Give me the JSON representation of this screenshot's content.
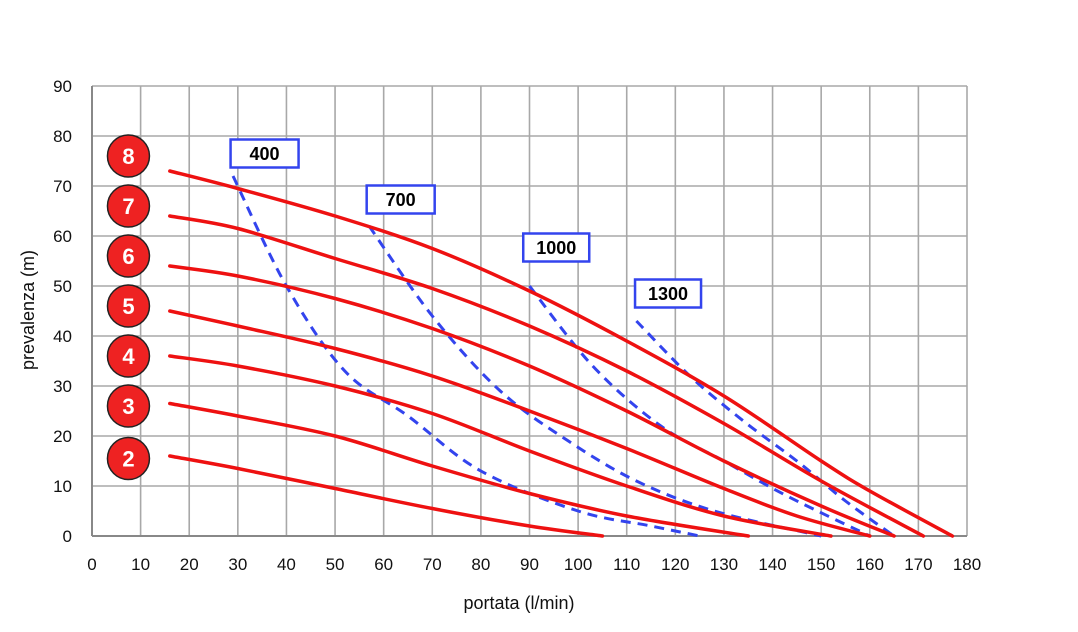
{
  "chart_data": {
    "type": "line",
    "title": "",
    "xlabel": "portata (l/min)",
    "ylabel": "prevalenza (m)",
    "xlim": [
      0,
      180
    ],
    "ylim": [
      0,
      90
    ],
    "x_ticks": [
      0,
      10,
      20,
      30,
      40,
      50,
      60,
      70,
      80,
      90,
      100,
      110,
      120,
      130,
      140,
      150,
      160,
      170,
      180
    ],
    "y_ticks": [
      0,
      10,
      20,
      30,
      40,
      50,
      60,
      70,
      80,
      90
    ],
    "grid": true,
    "curve_color": "#ee1111",
    "iso_color": "#3344ee",
    "series": [
      {
        "name": "2",
        "x": [
          16,
          30,
          50,
          70,
          90,
          105
        ],
        "y": [
          16,
          13.5,
          9.5,
          5.5,
          2,
          0
        ]
      },
      {
        "name": "3",
        "x": [
          16,
          30,
          50,
          70,
          90,
          110,
          135
        ],
        "y": [
          26.5,
          24,
          20,
          14,
          8.5,
          4,
          0
        ]
      },
      {
        "name": "4",
        "x": [
          16,
          30,
          50,
          70,
          90,
          110,
          130,
          152
        ],
        "y": [
          36,
          34,
          30,
          24.5,
          17,
          10,
          4,
          0
        ]
      },
      {
        "name": "5",
        "x": [
          16,
          30,
          50,
          70,
          90,
          110,
          130,
          145,
          160
        ],
        "y": [
          45,
          42,
          37.5,
          32,
          25,
          17.5,
          9.5,
          4,
          0
        ]
      },
      {
        "name": "6",
        "x": [
          16,
          30,
          50,
          70,
          90,
          110,
          130,
          150,
          165
        ],
        "y": [
          54,
          52,
          47.5,
          41.5,
          34,
          25,
          15,
          6,
          0
        ]
      },
      {
        "name": "7",
        "x": [
          16,
          30,
          50,
          70,
          90,
          110,
          130,
          150,
          171
        ],
        "y": [
          64,
          61.5,
          55.5,
          49.5,
          42,
          33,
          22.5,
          11,
          0
        ]
      },
      {
        "name": "8",
        "x": [
          16,
          30,
          50,
          70,
          90,
          110,
          130,
          150,
          160,
          177
        ],
        "y": [
          73,
          69.5,
          64,
          57.5,
          49,
          39,
          28,
          15,
          9,
          0
        ]
      }
    ],
    "iso_lines": [
      {
        "label": "400",
        "x": [
          29,
          40,
          52,
          65,
          80,
          100,
          115,
          125
        ],
        "y": [
          72,
          50,
          33,
          24,
          13,
          5,
          2,
          0
        ]
      },
      {
        "label": "700",
        "x": [
          57,
          70,
          84,
          98,
          112,
          128,
          150
        ],
        "y": [
          62,
          44,
          29,
          19,
          11,
          5,
          0
        ]
      },
      {
        "label": "1000",
        "x": [
          90,
          103,
          117,
          130,
          143,
          160
        ],
        "y": [
          50,
          34,
          22,
          15,
          8,
          0
        ]
      },
      {
        "label": "1300",
        "x": [
          112,
          123,
          134,
          145,
          155,
          165
        ],
        "y": [
          43,
          32,
          23,
          15,
          7,
          0
        ]
      }
    ],
    "iso_label_positions": [
      {
        "label": "400",
        "x": 35.5,
        "y": 76.5
      },
      {
        "label": "700",
        "x": 63.5,
        "y": 67.3
      },
      {
        "label": "1000",
        "x": 95.5,
        "y": 57.7
      },
      {
        "label": "1300",
        "x": 118.5,
        "y": 48.5
      }
    ],
    "badges": [
      {
        "label": "8",
        "y": 76
      },
      {
        "label": "7",
        "y": 66
      },
      {
        "label": "6",
        "y": 56
      },
      {
        "label": "5",
        "y": 46
      },
      {
        "label": "4",
        "y": 36
      },
      {
        "label": "3",
        "y": 26
      },
      {
        "label": "2",
        "y": 15.5
      }
    ],
    "badge_x": 7.5,
    "badge_color": "#ee2222"
  }
}
